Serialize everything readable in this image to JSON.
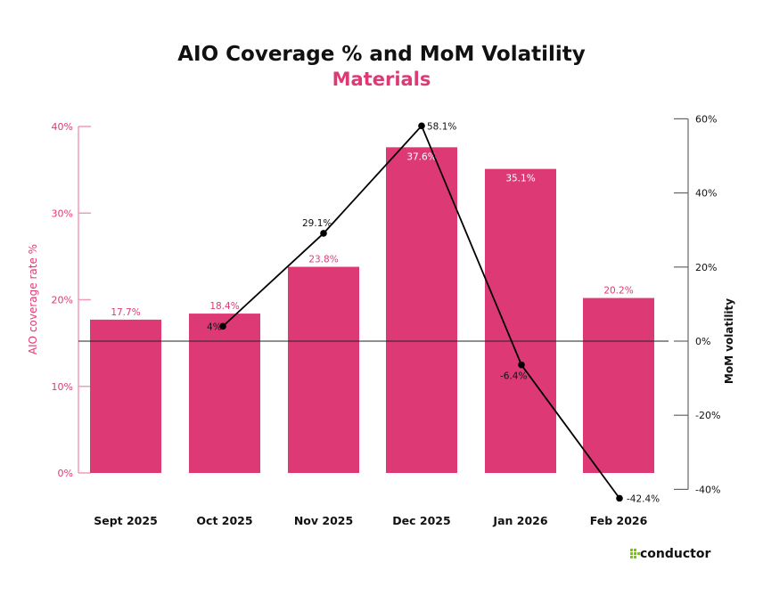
{
  "chart_data": {
    "type": "bar+line",
    "title": "AIO Coverage % and MoM Volatility",
    "subtitle": "Materials",
    "categories": [
      "Sept 2025",
      "Oct 2025",
      "Nov 2025",
      "Dec 2025",
      "Jan 2026",
      "Feb 2026"
    ],
    "series": [
      {
        "type": "bar",
        "axis": "left",
        "values": [
          17.7,
          18.4,
          23.8,
          37.6,
          35.1,
          20.2
        ],
        "labels": [
          "17.7%",
          "18.4%",
          "23.8%",
          "37.6%",
          "35.1%",
          "20.2%"
        ]
      },
      {
        "type": "line",
        "axis": "right",
        "values": [
          null,
          4,
          29.1,
          58.1,
          -6.4,
          -42.4
        ],
        "labels": [
          "",
          "4%",
          "29.1%",
          "58.1%",
          "-6.4%",
          "-42.4%"
        ]
      }
    ],
    "y_left": {
      "label": "AIO coverage rate %",
      "range": [
        0,
        40
      ],
      "ticks": [
        0,
        10,
        20,
        30,
        40
      ],
      "tick_labels": [
        "0%",
        "10%",
        "20%",
        "30%",
        "40%"
      ]
    },
    "y_right": {
      "label": "MoM volatility",
      "range": [
        -40,
        60
      ],
      "ticks": [
        -40,
        -20,
        0,
        20,
        40,
        60
      ],
      "tick_labels": [
        "-40%",
        "-20%",
        "0%",
        "20%",
        "40%",
        "60%"
      ]
    },
    "grid": false,
    "legend": "none",
    "colors": {
      "bar": "#dd3a75",
      "line": "#000000",
      "left_axis": "#f29bba",
      "left_text": "#dd3a75",
      "right_axis": "#666666",
      "logo": "#7cc31e"
    }
  },
  "logo": {
    "text": "conductor"
  }
}
